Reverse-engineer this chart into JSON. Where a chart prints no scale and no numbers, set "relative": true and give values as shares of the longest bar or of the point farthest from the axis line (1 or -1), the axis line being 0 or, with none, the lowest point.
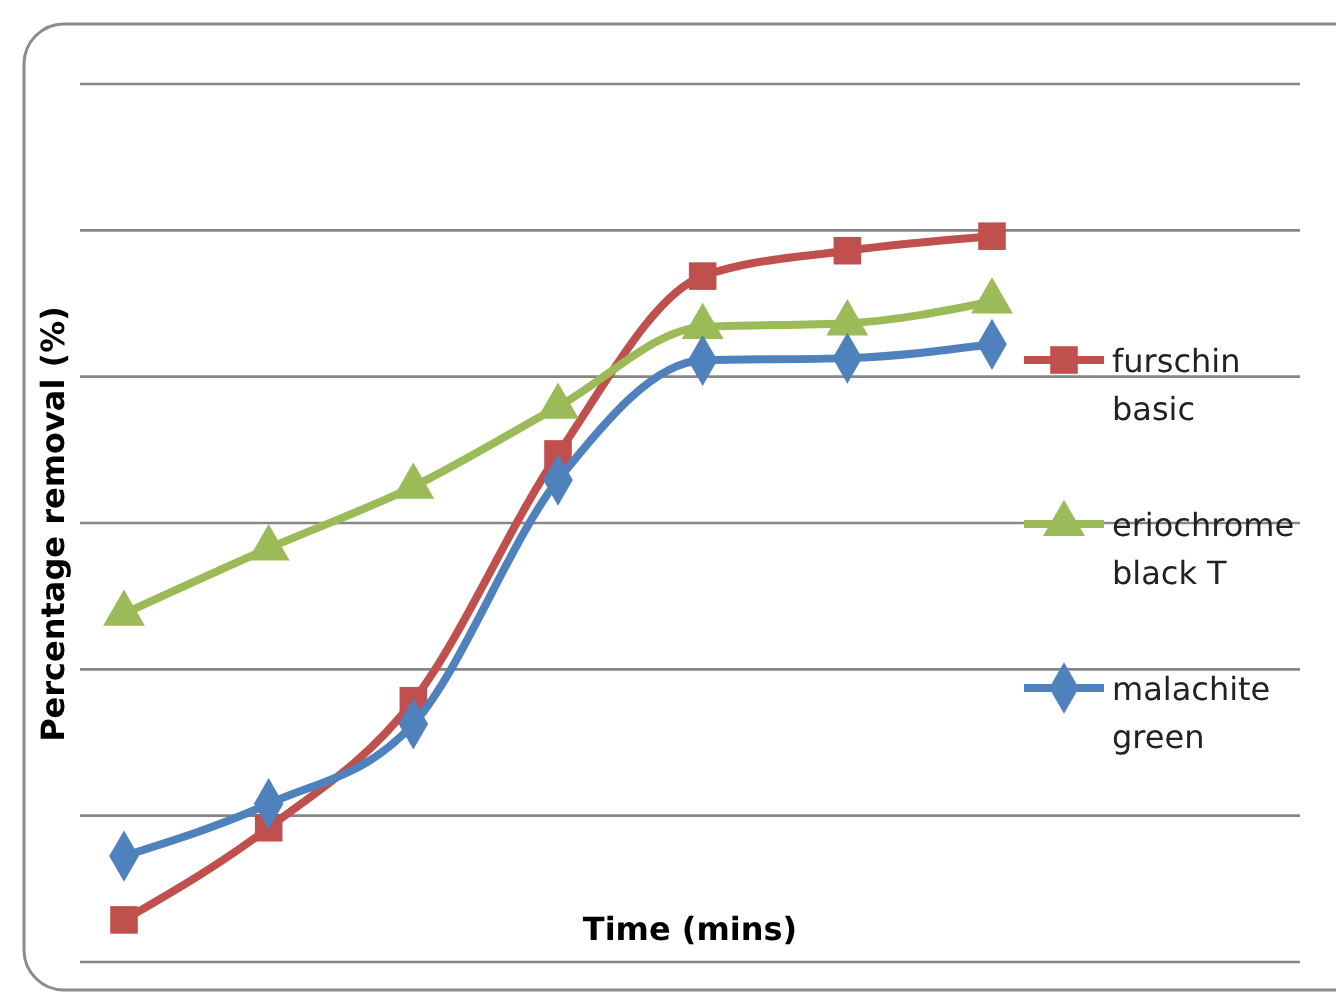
{
  "chart_data": {
    "type": "line",
    "relative": true,
    "xlabel": "Time (mins)",
    "ylabel": "Percentage removal (%)",
    "categories": [
      null,
      null,
      null,
      null,
      null,
      null,
      null
    ],
    "grid": true,
    "legend": "right",
    "series": [
      {
        "name": "furschin basic",
        "color": "#c0504d",
        "marker": "square",
        "values": [
          0.058,
          0.185,
          0.36,
          0.7,
          0.945,
          0.98,
          1
        ]
      },
      {
        "name": "eriochrome black T",
        "color": "#9bbb59",
        "marker": "triangle",
        "values": [
          0.48,
          0.57,
          0.655,
          0.765,
          0.875,
          0.88,
          0.91
        ]
      },
      {
        "name": "malachite green",
        "color": "#4f81bd",
        "marker": "diamond",
        "values": [
          0.146,
          0.218,
          0.328,
          0.664,
          0.829,
          0.832,
          0.851
        ]
      }
    ]
  }
}
